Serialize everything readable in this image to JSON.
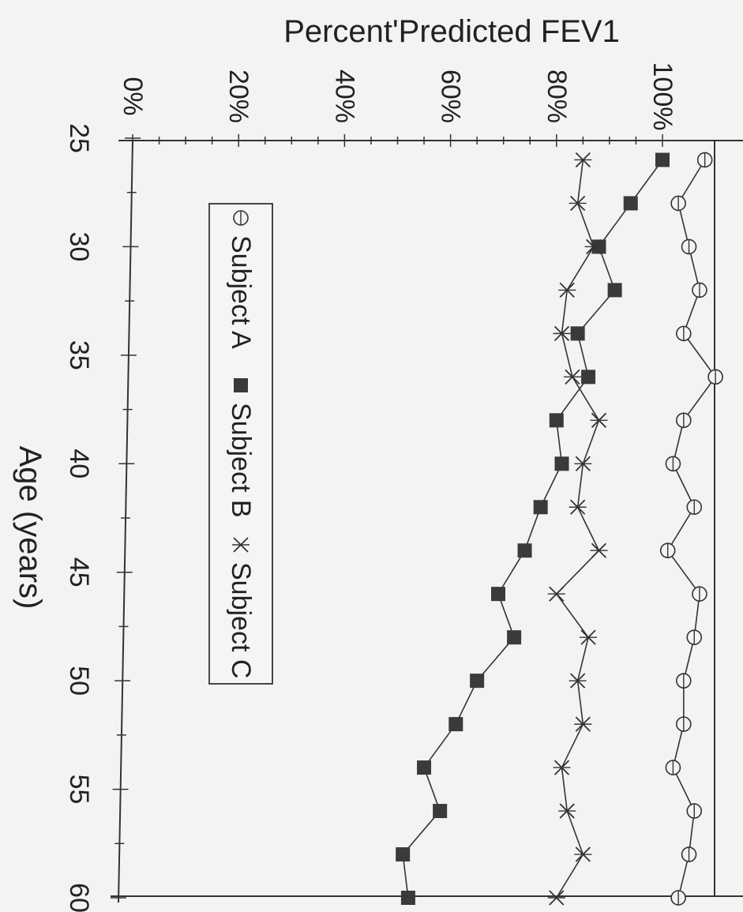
{
  "chart_data": {
    "type": "line",
    "ylabel": "Percent'Predicted FEV1",
    "xlabel": "Age (years)",
    "xlim": [
      25,
      60
    ],
    "ylim": [
      0,
      100
    ],
    "x_ticks": [
      25,
      30,
      35,
      40,
      45,
      50,
      55,
      60
    ],
    "y_ticks": [
      "0%",
      "20%",
      "40%",
      "60%",
      "80%",
      "100%"
    ],
    "y_tick_values": [
      0,
      20,
      40,
      60,
      80,
      100
    ],
    "legend": "right-inside",
    "grid": false,
    "series": [
      {
        "name": "Subject A",
        "marker": "circle-open",
        "color": "#333333",
        "x": [
          26,
          28,
          30,
          32,
          34,
          36,
          38,
          40,
          42,
          44,
          46,
          48,
          50,
          52,
          54,
          56,
          58,
          60
        ],
        "values": [
          108,
          103,
          105,
          107,
          104,
          110,
          104,
          102,
          106,
          101,
          107,
          106,
          104,
          104,
          102,
          106,
          105,
          103
        ]
      },
      {
        "name": "Subject B",
        "marker": "square-filled",
        "color": "#333333",
        "x": [
          26,
          28,
          30,
          32,
          34,
          36,
          38,
          40,
          42,
          44,
          46,
          48,
          50,
          52,
          54,
          56,
          58,
          60
        ],
        "values": [
          100,
          94,
          88,
          91,
          84,
          86,
          80,
          81,
          77,
          74,
          69,
          72,
          65,
          61,
          55,
          58,
          51,
          52
        ]
      },
      {
        "name": "Subject C",
        "marker": "x",
        "color": "#333333",
        "x": [
          26,
          28,
          30,
          32,
          34,
          36,
          38,
          40,
          42,
          44,
          46,
          48,
          50,
          52,
          54,
          56,
          58,
          60
        ],
        "values": [
          85,
          84,
          87,
          82,
          81,
          83,
          88,
          85,
          84,
          88,
          80,
          86,
          84,
          85,
          81,
          82,
          85,
          80
        ]
      }
    ]
  }
}
